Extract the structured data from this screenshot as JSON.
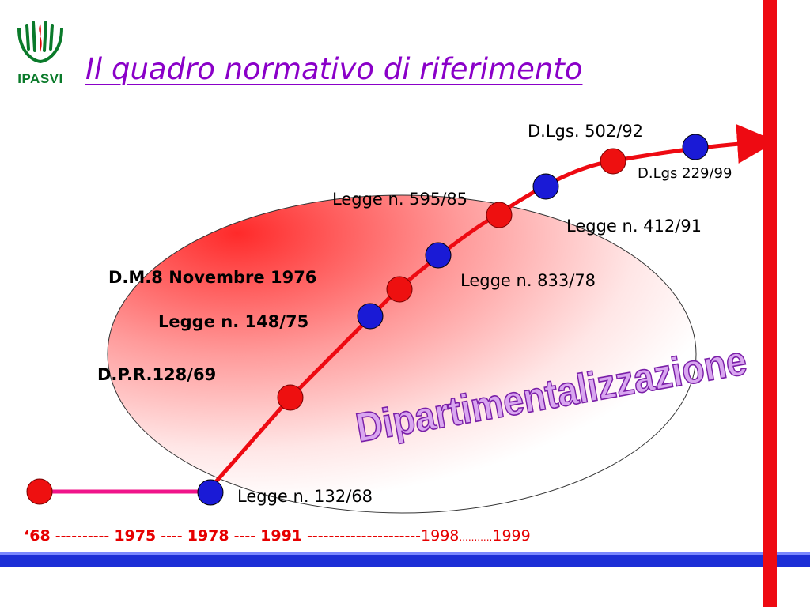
{
  "logo": {
    "text": "IPASVI",
    "color": "#0a7a2a"
  },
  "title": "Il quadro normativo di riferimento",
  "diagram": {
    "ellipse_label": "Dipartimentalizzazione",
    "laws": {
      "dlgs_502_92": "D.Lgs. 502/92",
      "dlgs_229_99": "D.Lgs 229/99",
      "legge_595_85": "Legge n. 595/85",
      "legge_412_91": "Legge n. 412/91",
      "dm_1976": "D.M.8 Novembre 1976",
      "legge_833_78": "Legge n. 833/78",
      "legge_148_75": "Legge n. 148/75",
      "dpr_128_69": "D.P.R.128/69",
      "legge_132_68": "Legge n. 132/68"
    },
    "colors": {
      "line": "#ee0a12",
      "start_line": "#f0148a",
      "red_dot": "#ee1010",
      "blue_dot": "#1a1ad6",
      "label_fill": "#d9a6f0",
      "label_edge": "#7a1fa8"
    }
  },
  "timeline": {
    "y68": "‘68",
    "dash1": " ---------- ",
    "y1975": "1975",
    "dash2": " ---- ",
    "y1978": "1978",
    "dash3": " ---- ",
    "y1991": "1991",
    "dash4": " ---------------------",
    "y1998": "1998",
    "dots": "...........",
    "y1999": "1999"
  }
}
